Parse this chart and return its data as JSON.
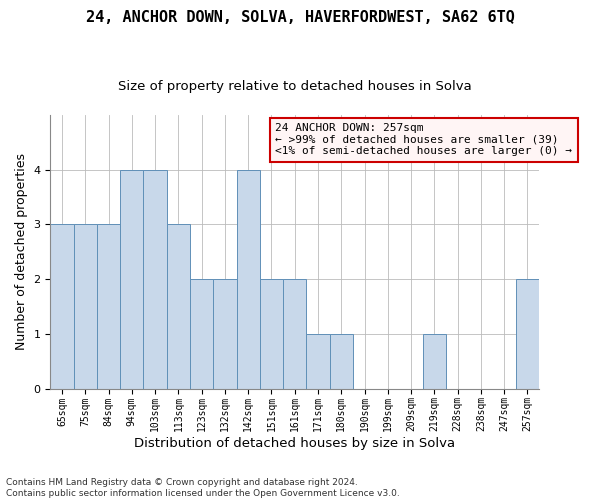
{
  "title": "24, ANCHOR DOWN, SOLVA, HAVERFORDWEST, SA62 6TQ",
  "subtitle": "Size of property relative to detached houses in Solva",
  "xlabel": "Distribution of detached houses by size in Solva",
  "ylabel": "Number of detached properties",
  "categories": [
    "65sqm",
    "75sqm",
    "84sqm",
    "94sqm",
    "103sqm",
    "113sqm",
    "123sqm",
    "132sqm",
    "142sqm",
    "151sqm",
    "161sqm",
    "171sqm",
    "180sqm",
    "190sqm",
    "199sqm",
    "209sqm",
    "219sqm",
    "228sqm",
    "238sqm",
    "247sqm",
    "257sqm"
  ],
  "values": [
    3,
    3,
    3,
    4,
    4,
    3,
    2,
    2,
    4,
    2,
    2,
    1,
    1,
    0,
    0,
    0,
    1,
    0,
    0,
    0,
    2
  ],
  "bar_color": "#c8d8ea",
  "bar_edge_color": "#6090b8",
  "ylim": [
    0,
    5
  ],
  "yticks": [
    0,
    1,
    2,
    3,
    4
  ],
  "annotation_title": "24 ANCHOR DOWN: 257sqm",
  "annotation_line1": "← >99% of detached houses are smaller (39)",
  "annotation_line2": "<1% of semi-detached houses are larger (0) →",
  "annotation_box_facecolor": "#fff5f5",
  "annotation_box_edge": "#cc0000",
  "footer": "Contains HM Land Registry data © Crown copyright and database right 2024.\nContains public sector information licensed under the Open Government Licence v3.0.",
  "grid_color": "#bbbbbb",
  "background_color": "#ffffff",
  "title_fontsize": 11,
  "subtitle_fontsize": 9.5,
  "ylabel_fontsize": 9,
  "xlabel_fontsize": 9.5,
  "tick_fontsize": 7,
  "annotation_fontsize": 8,
  "footer_fontsize": 6.5
}
